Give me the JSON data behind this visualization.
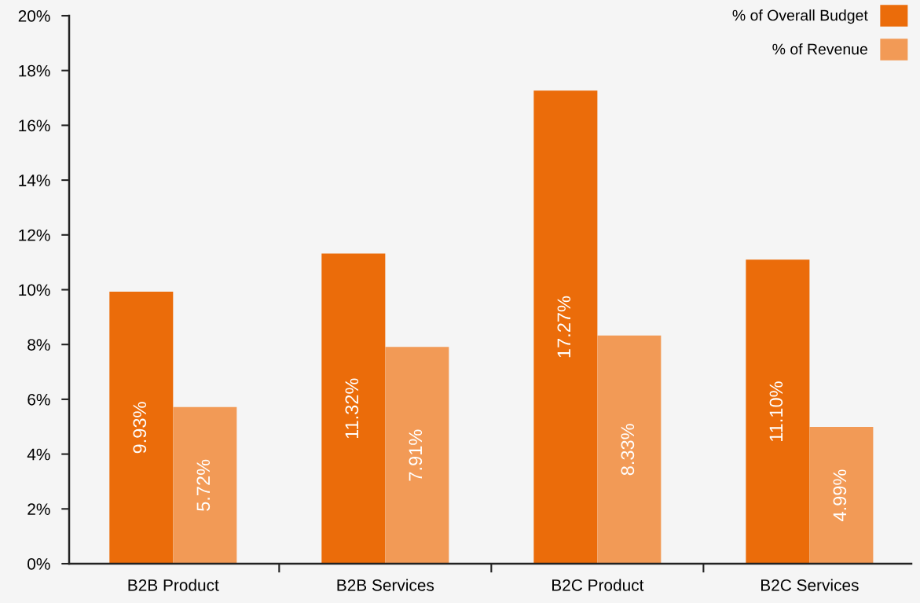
{
  "chart_data": {
    "type": "bar",
    "categories": [
      "B2B Product",
      "B2B Services",
      "B2C Product",
      "B2C Services"
    ],
    "series": [
      {
        "name": "% of Overall Budget",
        "color": "#eb6c0a",
        "values": [
          9.93,
          11.32,
          17.27,
          11.1
        ],
        "value_labels": [
          "9.93%",
          "11.32%",
          "17.27%",
          "11.10%"
        ]
      },
      {
        "name": "% of Revenue",
        "color": "#f29a56",
        "values": [
          5.72,
          7.91,
          8.33,
          4.99
        ],
        "value_labels": [
          "5.72%",
          "7.91%",
          "8.33%",
          "4.99%"
        ]
      }
    ],
    "ylim": [
      0,
      20
    ],
    "yticks": [
      {
        "value": 0,
        "label": "0%"
      },
      {
        "value": 2,
        "label": "2%"
      },
      {
        "value": 4,
        "label": "4%"
      },
      {
        "value": 6,
        "label": "6%"
      },
      {
        "value": 8,
        "label": "8%"
      },
      {
        "value": 10,
        "label": "10%"
      },
      {
        "value": 12,
        "label": "12%"
      },
      {
        "value": 14,
        "label": "14%"
      },
      {
        "value": 16,
        "label": "16%"
      },
      {
        "value": 18,
        "label": "18%"
      },
      {
        "value": 20,
        "label": "20%"
      }
    ],
    "grid": false,
    "legend": "top right"
  }
}
